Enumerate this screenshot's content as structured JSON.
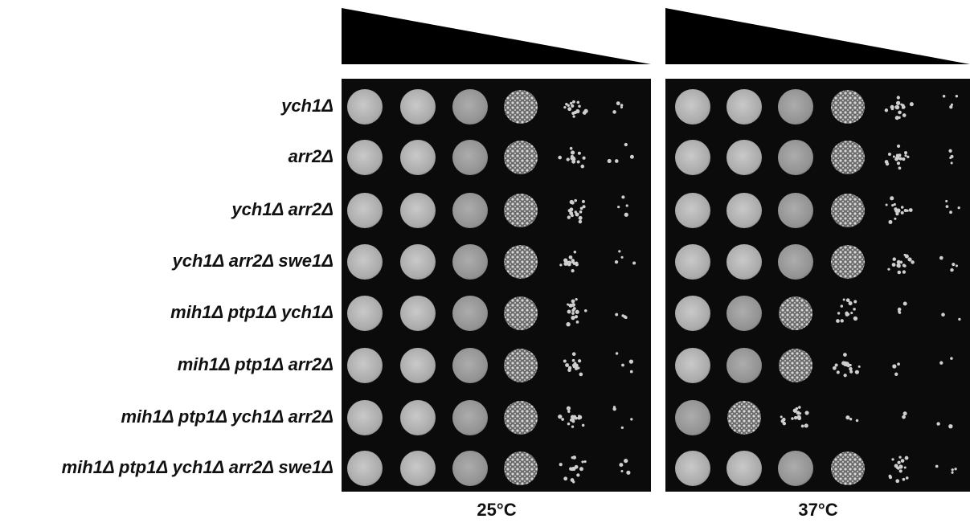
{
  "figure": {
    "strains": [
      "ych1Δ",
      "arr2Δ",
      "ych1Δ arr2Δ",
      "ych1Δ arr2Δ swe1Δ",
      "mih1Δ ptp1Δ ych1Δ",
      "mih1Δ ptp1Δ arr2Δ",
      "mih1Δ ptp1Δ ych1Δ arr2Δ",
      "mih1Δ ptp1Δ ych1Δ arr2Δ swe1Δ"
    ],
    "plates": [
      {
        "label": "25°C"
      },
      {
        "label": "37°C"
      }
    ]
  }
}
